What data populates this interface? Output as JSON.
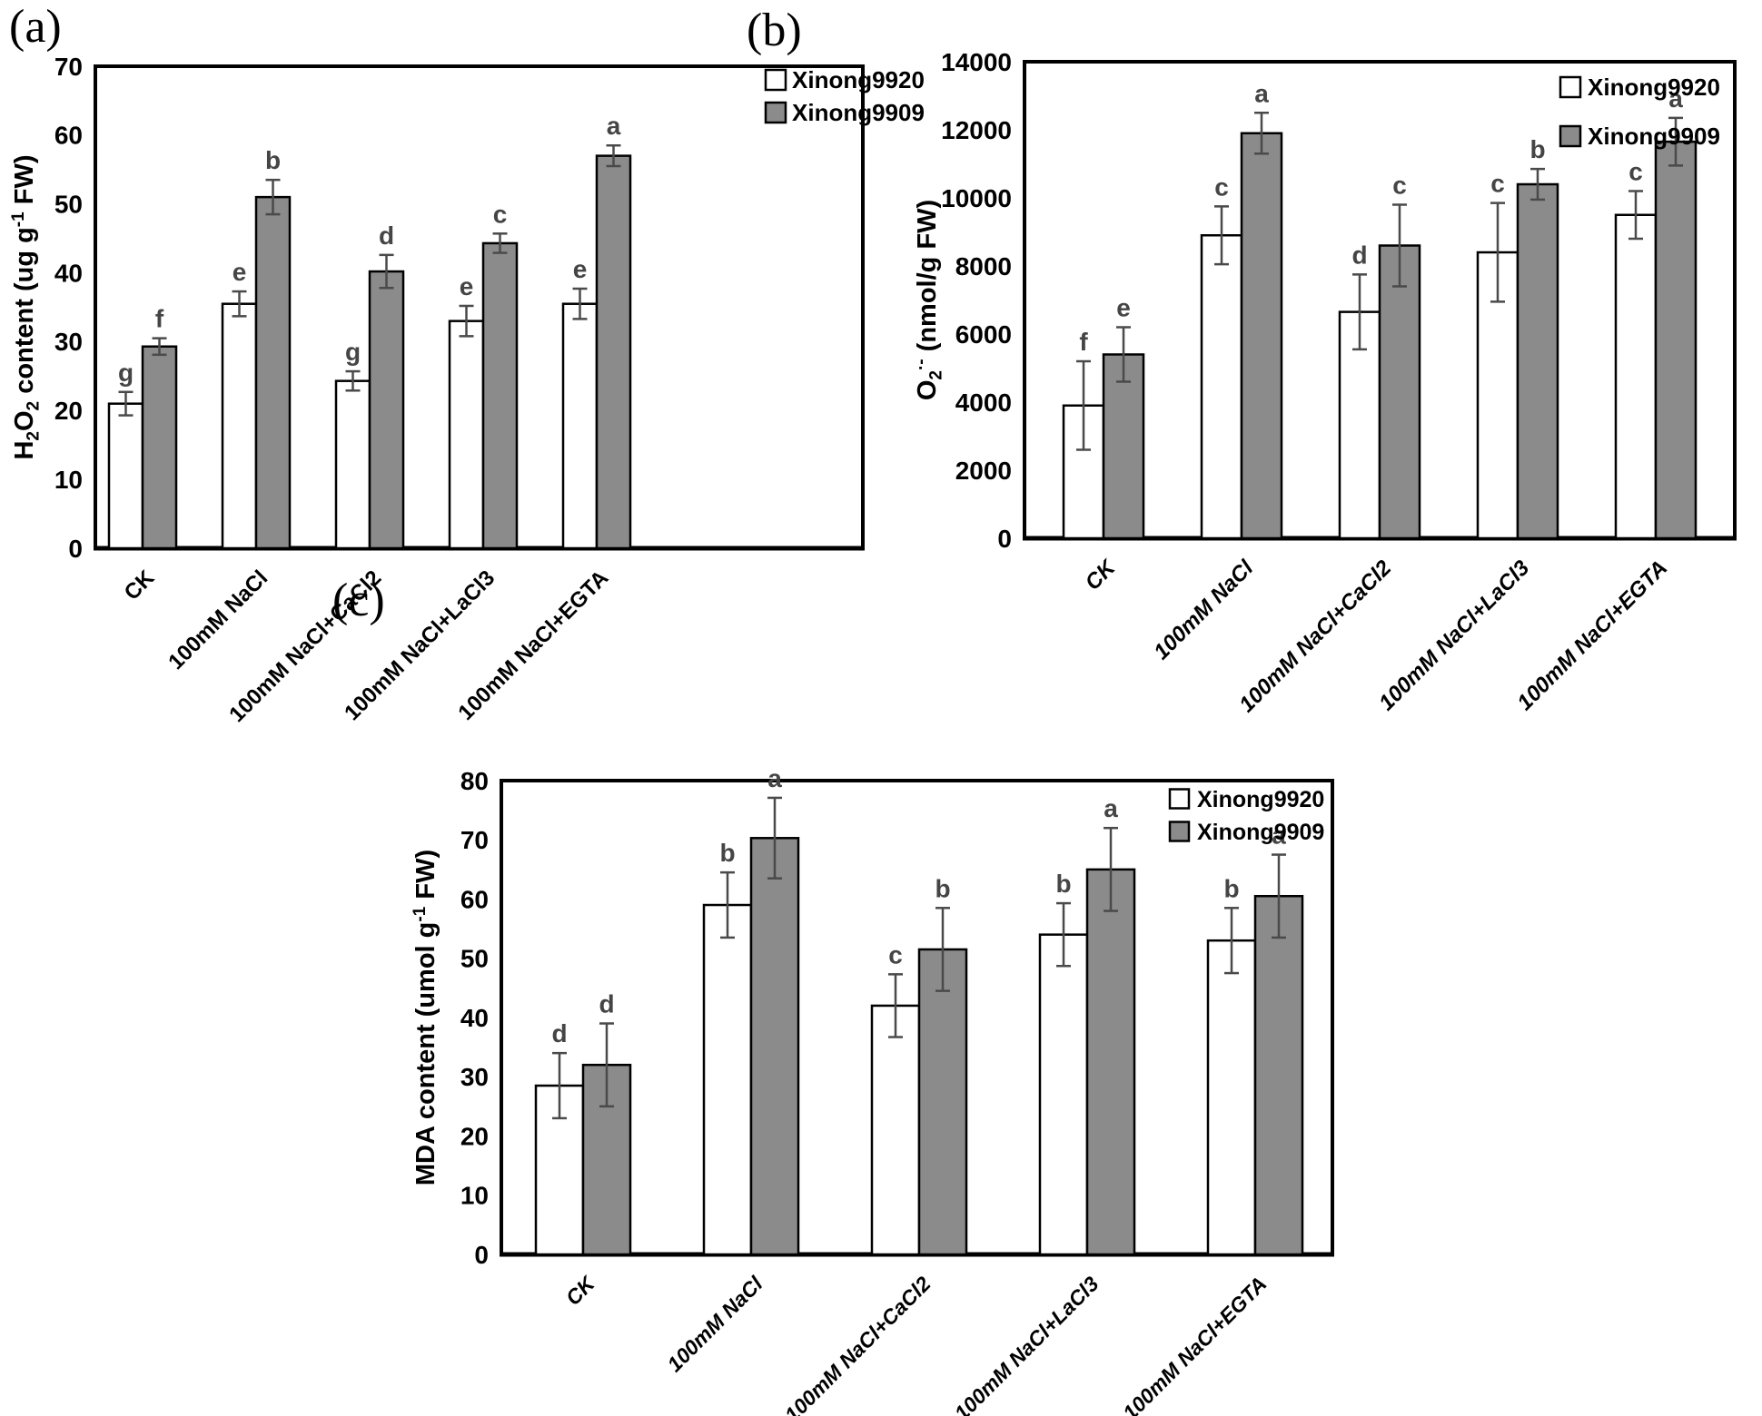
{
  "figure": {
    "background": "#ffffff"
  },
  "colors": {
    "background": "#ffffff",
    "axis": "#000000",
    "bar_stroke": "#000000",
    "series1_fill": "#ffffff",
    "series2_fill": "#8b8b8b",
    "error_bar": "#4a4a4a",
    "sig_letter": "#454545",
    "tick_text": "#000000"
  },
  "chart_data": [
    {
      "id": "a",
      "type": "bar",
      "panel_label": "(a)",
      "title": "",
      "xlabel": "",
      "ylabel": "H2O2 content (ug g-1 FW)",
      "ylabel_parts": [
        {
          "t": "H"
        },
        {
          "t": "2",
          "s": "sub"
        },
        {
          "t": "O"
        },
        {
          "t": "2",
          "s": "sub"
        },
        {
          "t": " content (ug g"
        },
        {
          "t": "-1",
          "s": "sup"
        },
        {
          "t": " FW)"
        }
      ],
      "ylim": [
        0,
        70
      ],
      "ytick_step": 10,
      "grid": false,
      "legend_position": "top-right",
      "categories": [
        "CK",
        "100mM NaCl",
        "100mM NaCl+CaCl2",
        "100mM NaCl+LaCl3",
        "100mM NaCl+EGTA"
      ],
      "series": [
        {
          "name": "Xinong9920",
          "values": [
            21.0,
            35.5,
            24.3,
            33.0,
            35.5
          ],
          "errors": [
            1.7,
            1.8,
            1.4,
            2.2,
            2.2
          ],
          "letters": [
            "g",
            "e",
            "g",
            "e",
            "e"
          ]
        },
        {
          "name": "Xinong9909",
          "values": [
            29.3,
            51.0,
            40.2,
            44.3,
            57.0
          ],
          "errors": [
            1.2,
            2.5,
            2.4,
            1.4,
            1.5
          ],
          "letters": [
            "f",
            "b",
            "d",
            "c",
            "a"
          ]
        }
      ]
    },
    {
      "id": "b",
      "type": "bar",
      "panel_label": "(b)",
      "title": "",
      "xlabel": "",
      "ylabel": "O2·- (nmol/g FW)",
      "ylabel_parts": [
        {
          "t": "O"
        },
        {
          "t": "2",
          "s": "sub"
        },
        {
          "t": "·-",
          "s": "sup"
        },
        {
          "t": " (nmol/g FW)"
        }
      ],
      "ylim": [
        0,
        14000
      ],
      "ytick_step": 2000,
      "grid": false,
      "legend_position": "top-right",
      "categories": [
        "CK",
        "100mM NaCl",
        "100mM NaCl+CaCl2",
        "100mM NaCl+LaCl3",
        "100mM NaCl+EGTA"
      ],
      "series": [
        {
          "name": "Xinong9920",
          "values": [
            3900,
            8900,
            6650,
            8400,
            9500
          ],
          "errors": [
            1300,
            850,
            1100,
            1450,
            700
          ],
          "letters": [
            "f",
            "c",
            "d",
            "c",
            "c"
          ]
        },
        {
          "name": "Xinong9909",
          "values": [
            5400,
            11900,
            8600,
            10400,
            11650
          ],
          "errors": [
            800,
            600,
            1200,
            450,
            700
          ],
          "letters": [
            "e",
            "a",
            "c",
            "b",
            "a"
          ]
        }
      ]
    },
    {
      "id": "c",
      "type": "bar",
      "panel_label": "(c)",
      "title": "",
      "xlabel": "",
      "ylabel": "MDA content (umol g-1 FW)",
      "ylabel_parts": [
        {
          "t": "MDA content (umol g"
        },
        {
          "t": "-1",
          "s": "sup"
        },
        {
          "t": " FW)"
        }
      ],
      "ylim": [
        0,
        80
      ],
      "ytick_step": 10,
      "grid": false,
      "legend_position": "top-right",
      "categories": [
        "CK",
        "100mM NaCl",
        "100mM NaCl+CaCl2",
        "100mM NaCl+LaCl3",
        "100mM NaCl+EGTA"
      ],
      "series": [
        {
          "name": "Xinong9920",
          "values": [
            28.5,
            59.0,
            42.0,
            54.0,
            53.0
          ],
          "errors": [
            5.5,
            5.5,
            5.3,
            5.3,
            5.5
          ],
          "letters": [
            "d",
            "b",
            "c",
            "b",
            "b"
          ]
        },
        {
          "name": "Xinong9909",
          "values": [
            32.0,
            70.3,
            51.5,
            65.0,
            60.5
          ],
          "errors": [
            7.0,
            6.8,
            7.0,
            7.0,
            7.0
          ],
          "letters": [
            "d",
            "a",
            "b",
            "a",
            "a"
          ]
        }
      ]
    }
  ]
}
